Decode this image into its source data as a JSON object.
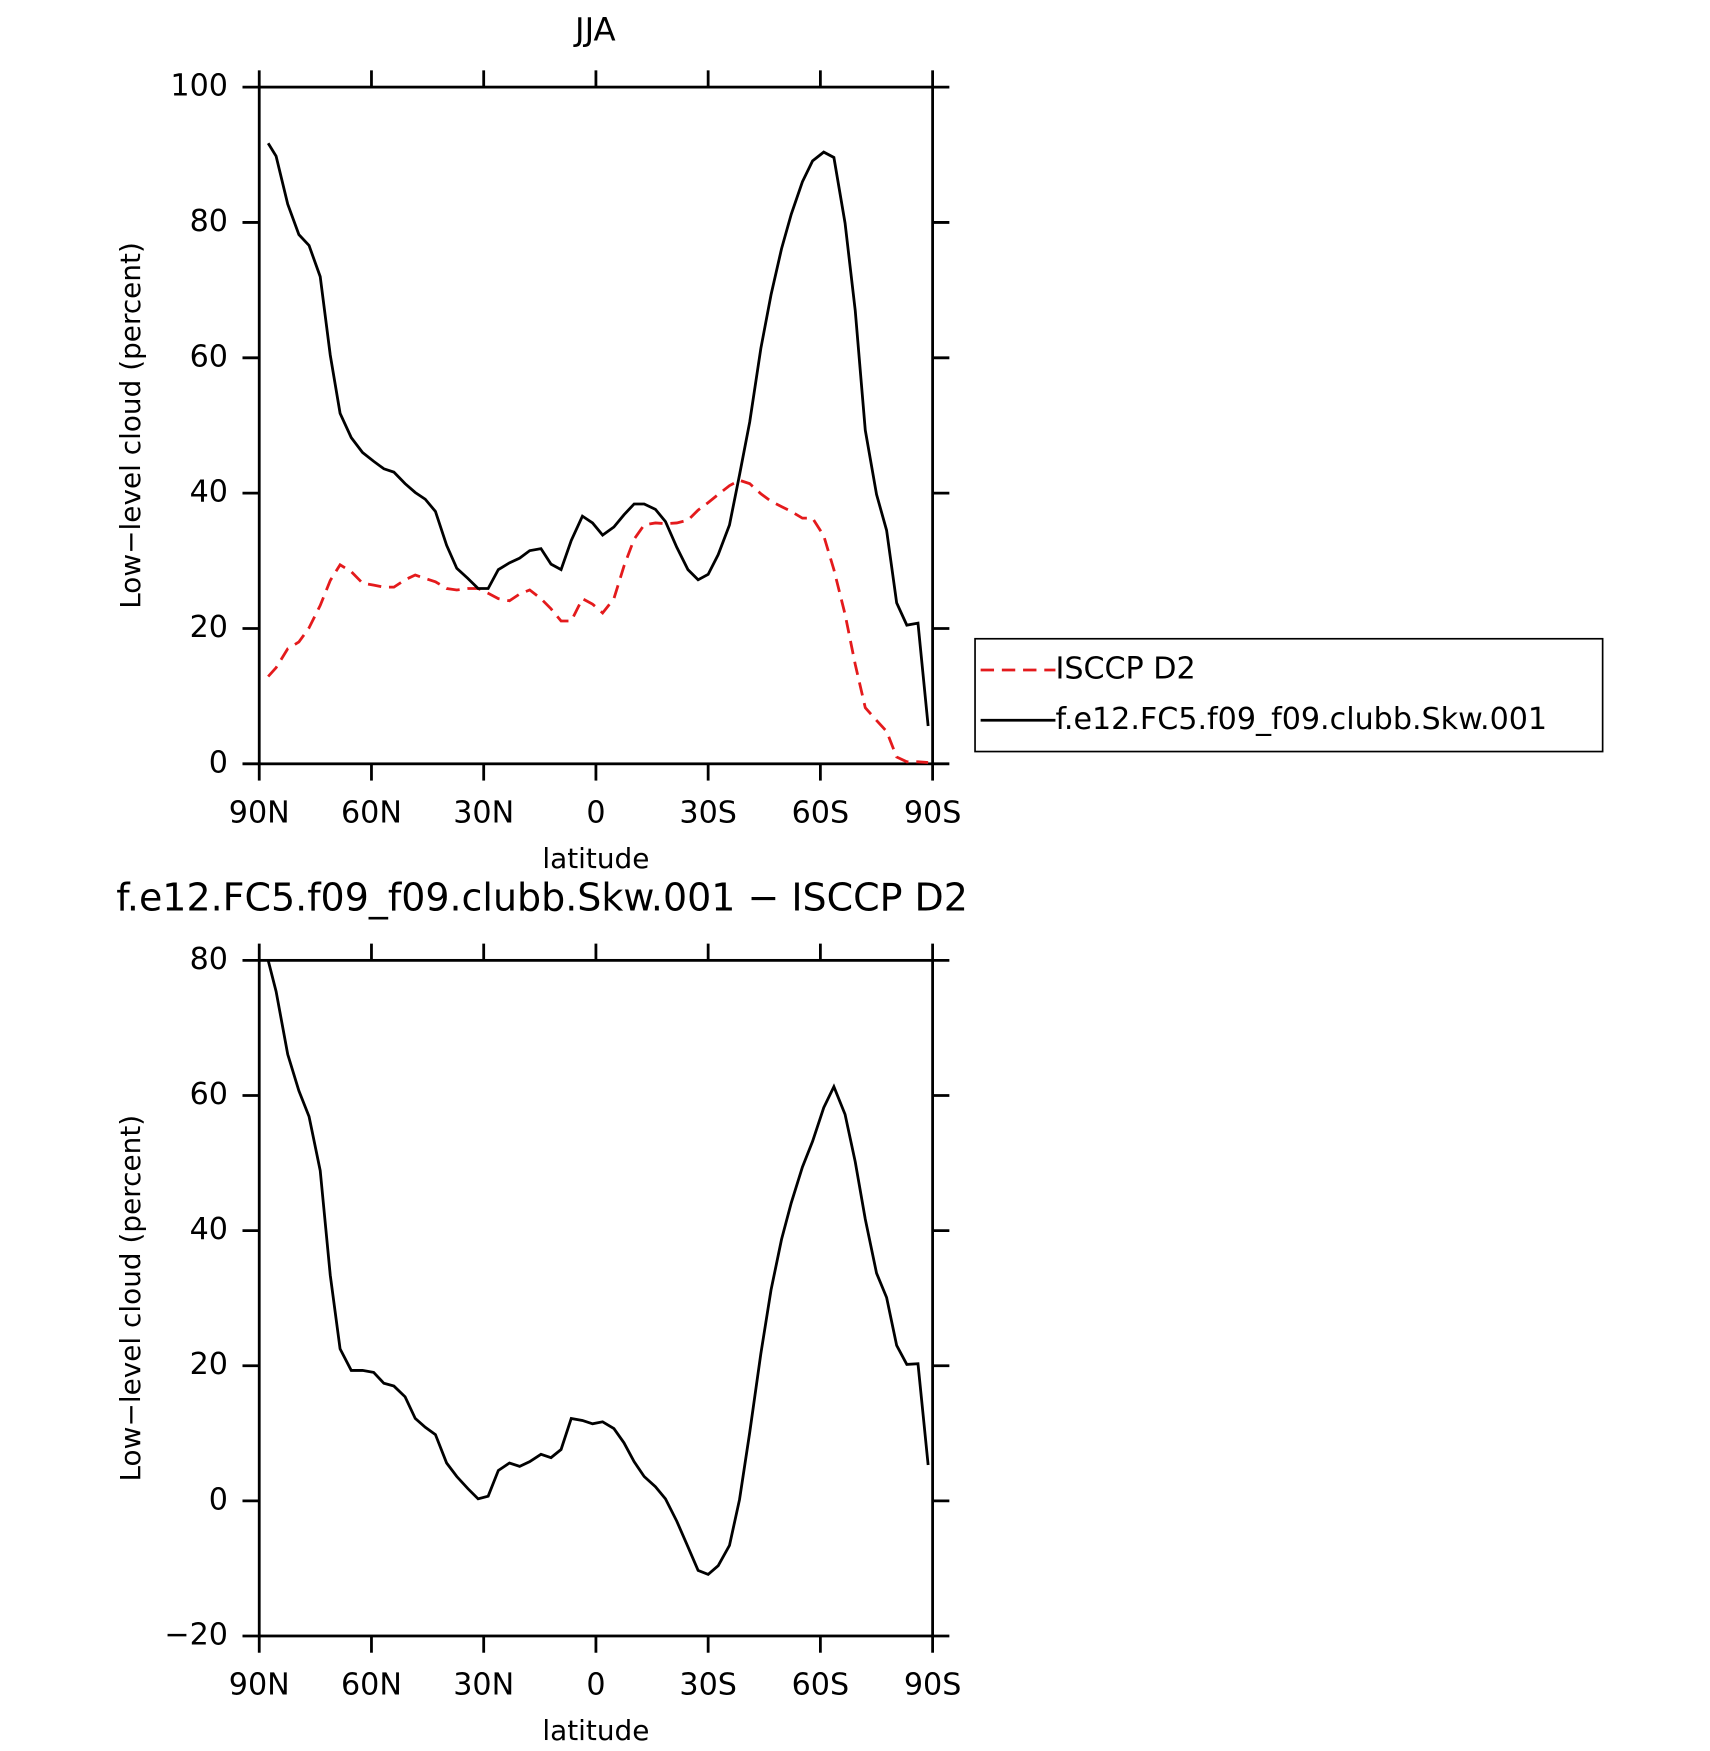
{
  "chart_data": [
    {
      "type": "line",
      "title": "JJA",
      "x_label": "latitude",
      "y_label": "Low−level cloud (percent)",
      "x": [
        87.6,
        85.5,
        82.4,
        79.4,
        76.7,
        73.7,
        71.0,
        68.4,
        65.4,
        62.4,
        59.4,
        56.7,
        54.0,
        51.0,
        48.3,
        45.6,
        42.9,
        39.9,
        37.2,
        34.2,
        31.5,
        28.8,
        26.1,
        23.1,
        20.4,
        17.7,
        14.7,
        12.0,
        9.3,
        6.6,
        3.6,
        0.9,
        -1.8,
        -4.8,
        -7.5,
        -10.2,
        -12.9,
        -15.9,
        -18.6,
        -21.6,
        -24.6,
        -27.3,
        -30.0,
        -32.7,
        -35.7,
        -38.4,
        -41.1,
        -44.1,
        -46.8,
        -49.6,
        -52.2,
        -55.2,
        -57.9,
        -60.9,
        -63.6,
        -66.6,
        -69.3,
        -72.0,
        -75.0,
        -77.7,
        -80.4,
        -83.1,
        -86.1,
        -88.8
      ],
      "series": [
        {
          "name": "ISCCP D2",
          "color": "#e41a1c",
          "dashed": true,
          "values": [
            12.9,
            14.2,
            17,
            18,
            20.1,
            23.4,
            27.1,
            29.4,
            28.4,
            26.7,
            26.4,
            26.1,
            26.1,
            27.2,
            27.9,
            27.4,
            26.9,
            25.9,
            25.7,
            25.9,
            25.9,
            25.2,
            24.4,
            24.1,
            25.1,
            25.7,
            24.4,
            22.9,
            21.1,
            21.1,
            24.4,
            23.6,
            22.3,
            24.4,
            29.2,
            33.2,
            35.3,
            35.6,
            35.5,
            35.6,
            36,
            37.5,
            38.6,
            39.8,
            41.1,
            41.9,
            41.4,
            39.9,
            38.8,
            38,
            37.3,
            36.3,
            36.3,
            33.7,
            28.7,
            22.1,
            14.7,
            8.3,
            6.4,
            4.8,
            1,
            0.3,
            0.3,
            0.2
          ]
        },
        {
          "name": "f.e12.FC5.f09_f09.clubb.Skw.001",
          "color": "#000000",
          "dashed": false,
          "values": [
            91.7,
            89.8,
            82.7,
            78.2,
            76.6,
            72,
            60.4,
            51.8,
            48.2,
            46,
            44.7,
            43.6,
            43.1,
            41.4,
            40.1,
            39.1,
            37.3,
            32.3,
            28.9,
            27.4,
            25.9,
            25.9,
            28.7,
            29.7,
            30.4,
            31.5,
            31.8,
            29.5,
            28.7,
            33,
            36.6,
            35.6,
            33.8,
            35,
            36.8,
            38.4,
            38.4,
            37.6,
            35.8,
            32,
            28.7,
            27.2,
            28,
            30.9,
            35.3,
            42.7,
            50.5,
            61.4,
            69.3,
            76.1,
            81.2,
            86,
            89.1,
            90.4,
            89.6,
            79.9,
            67,
            49.3,
            39.8,
            34.5,
            23.8,
            20.5,
            20.8,
            5.6
          ]
        }
      ],
      "xlim": [
        90,
        -90
      ],
      "xticks": [
        {
          "value": 90,
          "label": "90N"
        },
        {
          "value": 60,
          "label": "60N"
        },
        {
          "value": 30,
          "label": "30N"
        },
        0,
        {
          "value": -30,
          "label": "30S"
        },
        {
          "value": -60,
          "label": "60S"
        },
        {
          "value": -90,
          "label": "90S"
        }
      ],
      "ylim": [
        0,
        100
      ],
      "yticks": [
        0,
        20,
        40,
        60,
        80,
        100
      ],
      "legend": "right"
    },
    {
      "type": "line",
      "title": "f.e12.FC5.f09_f09.clubb.Skw.001 − ISCCP D2",
      "x_label": "latitude",
      "y_label": "Low−level cloud (percent)",
      "x": [
        87.6,
        85.5,
        82.4,
        79.4,
        76.7,
        73.7,
        71.0,
        68.4,
        65.4,
        62.4,
        59.4,
        56.7,
        54.0,
        51.0,
        48.3,
        45.6,
        42.9,
        39.9,
        37.2,
        34.2,
        31.5,
        28.8,
        26.1,
        23.1,
        20.4,
        17.7,
        14.7,
        12.0,
        9.3,
        6.6,
        3.6,
        0.9,
        -1.8,
        -4.8,
        -7.5,
        -10.2,
        -12.9,
        -15.9,
        -18.6,
        -21.6,
        -24.6,
        -27.3,
        -30.0,
        -32.7,
        -35.7,
        -38.4,
        -41.1,
        -44.1,
        -46.8,
        -49.6,
        -52.2,
        -55.2,
        -57.9,
        -60.9,
        -63.6,
        -66.6,
        -69.3,
        -72.0,
        -75.0,
        -77.7,
        -80.4,
        -83.1,
        -86.1,
        -88.8
      ],
      "color": "#000000",
      "values": [
        80,
        75.4,
        66.1,
        60.7,
        56.9,
        48.9,
        33.4,
        22.5,
        19.3,
        19.3,
        19,
        17.4,
        17,
        15.4,
        12.2,
        10.9,
        9.8,
        5.6,
        3.6,
        1.8,
        0.3,
        0.7,
        4.5,
        5.6,
        5.1,
        5.8,
        6.9,
        6.4,
        7.6,
        12.2,
        11.9,
        11.4,
        11.7,
        10.7,
        8.6,
        5.8,
        3.6,
        2.1,
        0.3,
        -3,
        -6.8,
        -10.3,
        -10.9,
        -9.6,
        -6.6,
        0.2,
        10.1,
        21.8,
        31.2,
        38.7,
        44.1,
        49.4,
        53.2,
        58.2,
        61.3,
        57.2,
        50.2,
        41.7,
        33.7,
        30.1,
        23,
        20.2,
        20.3,
        5.3
      ],
      "xlim": [
        90,
        -90
      ],
      "xticks": [
        {
          "value": 90,
          "label": "90N"
        },
        {
          "value": 60,
          "label": "60N"
        },
        {
          "value": 30,
          "label": "30N"
        },
        0,
        {
          "value": -30,
          "label": "30S"
        },
        {
          "value": -60,
          "label": "60S"
        },
        {
          "value": -90,
          "label": "90S"
        }
      ],
      "ylim": [
        -20,
        80
      ],
      "yticks": [
        {
          "value": -20,
          "label": "−20"
        },
        0,
        20,
        40,
        60,
        80
      ]
    }
  ]
}
